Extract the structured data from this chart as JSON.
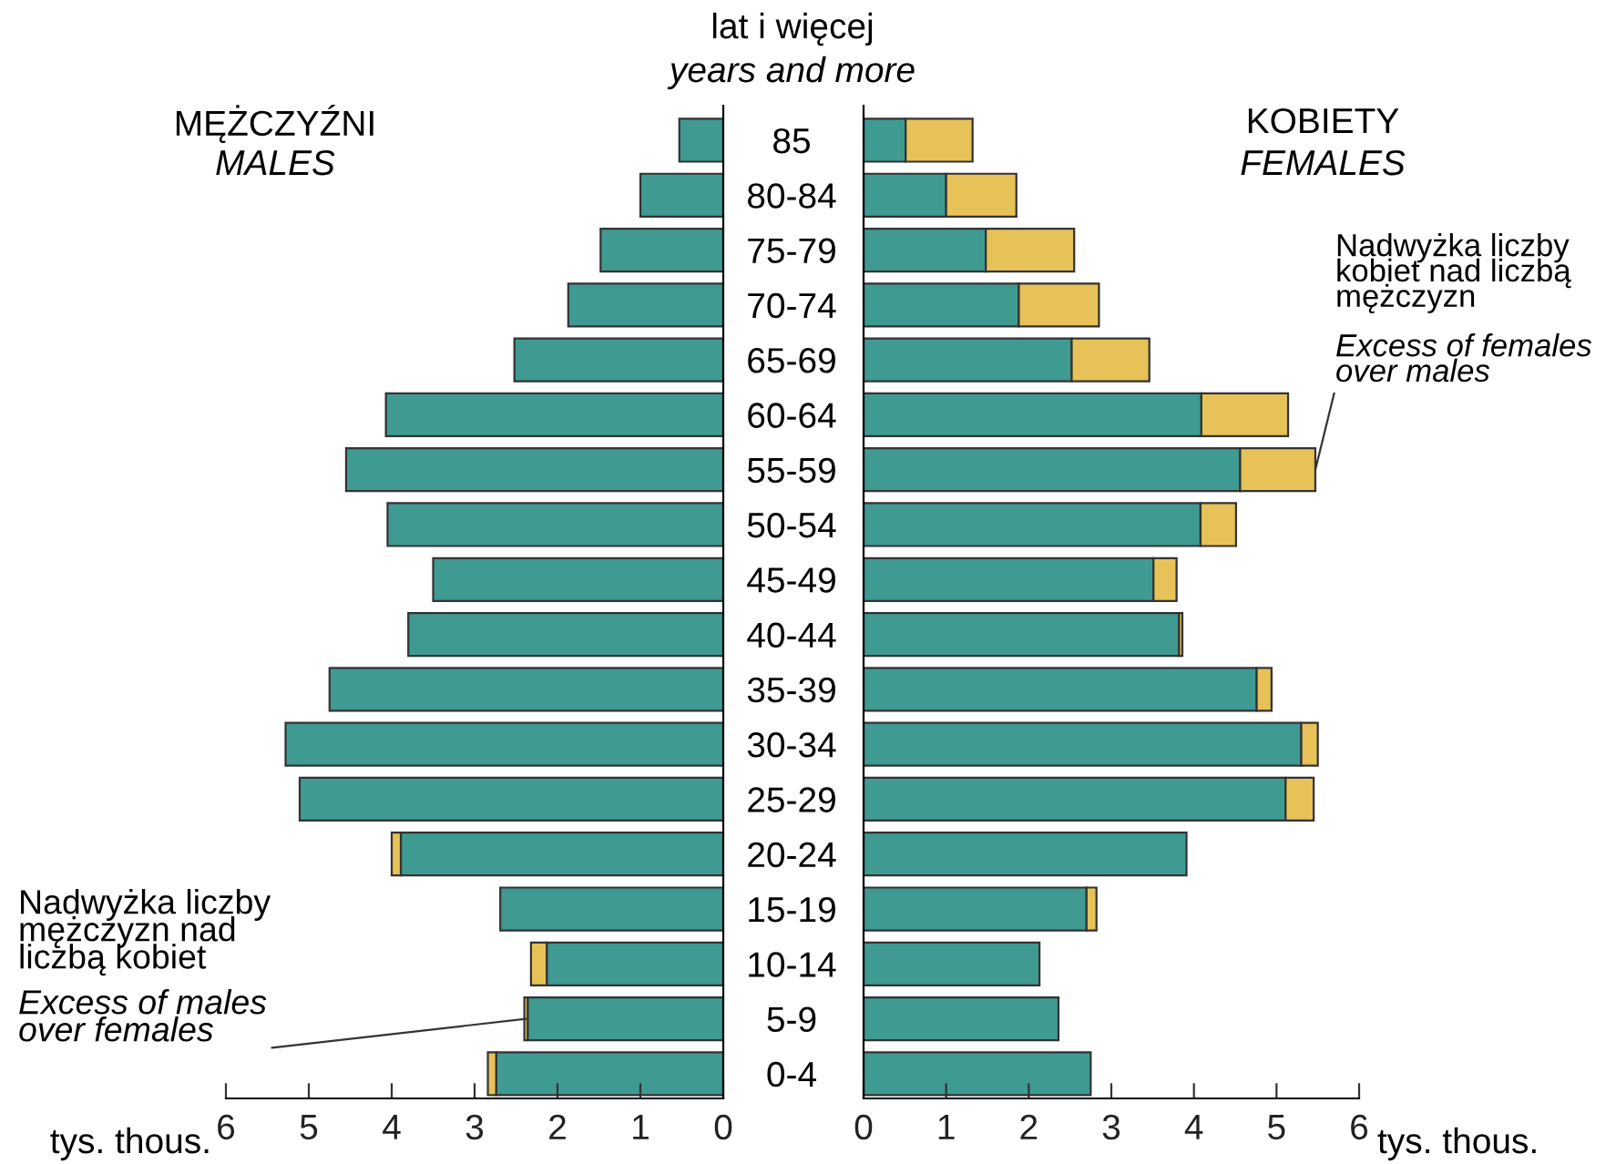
{
  "chart_data": [
    {
      "type": "bar",
      "orientation": "horizontal",
      "stacked": true,
      "title": "MĘŻCZYŹNI",
      "subtitle": "MALES",
      "xlabel": "tys. thous.",
      "categories": [
        "85",
        "80-84",
        "75-79",
        "70-74",
        "65-69",
        "60-64",
        "55-59",
        "50-54",
        "45-49",
        "40-44",
        "35-39",
        "30-34",
        "25-29",
        "20-24",
        "15-19",
        "10-14",
        "5-9",
        "0-4"
      ],
      "series": [
        {
          "color": "#3f9a92",
          "values": [
            0.53,
            1.0,
            1.48,
            1.87,
            2.52,
            4.07,
            4.55,
            4.05,
            3.5,
            3.8,
            4.75,
            5.28,
            5.11,
            3.89,
            2.69,
            2.13,
            2.36,
            2.74
          ]
        },
        {
          "color": "#e6c258",
          "values": [
            null,
            null,
            null,
            null,
            null,
            null,
            null,
            null,
            null,
            null,
            null,
            null,
            null,
            0.11,
            null,
            0.19,
            0.04,
            0.1
          ]
        }
      ],
      "xlim": [
        6,
        0
      ],
      "xticks": [
        0,
        1,
        2,
        3,
        4,
        5,
        6
      ],
      "annotations": [
        "lat i więcej",
        "years and more",
        "Nadwyżka liczby\nmężczyzn nad\nliczbą kobiet",
        {
          "text": "Excess of males\nover females",
          "x": 2.38,
          "y": "5-9"
        }
      ]
    },
    {
      "type": "bar",
      "orientation": "horizontal",
      "stacked": true,
      "title": "KOBIETY",
      "subtitle": "FEMALES",
      "xlabel": "tys. thous.",
      "tick_labels": "x",
      "categories": [
        "85",
        "80-84",
        "75-79",
        "70-74",
        "65-69",
        "60-64",
        "55-59",
        "50-54",
        "45-49",
        "40-44",
        "35-39",
        "30-34",
        "25-29",
        "20-24",
        "15-19",
        "10-14",
        "5-9",
        "0-4"
      ],
      "series": [
        {
          "color": "#3f9a92",
          "values": [
            0.51,
            1.0,
            1.48,
            1.88,
            2.52,
            4.09,
            4.56,
            4.08,
            3.51,
            3.82,
            4.76,
            5.3,
            5.11,
            3.91,
            2.7,
            2.13,
            2.36,
            2.75
          ]
        },
        {
          "color": "#e6c258",
          "values": [
            0.81,
            0.85,
            1.07,
            0.97,
            0.94,
            1.05,
            0.91,
            0.43,
            0.28,
            0.04,
            0.18,
            0.2,
            0.34,
            null,
            0.12,
            null,
            null,
            null
          ]
        }
      ],
      "xlim": [
        0,
        6
      ],
      "xticks": [
        0,
        1,
        2,
        3,
        4,
        5,
        6
      ],
      "annotations": [
        "Nadwyżka liczby\nkobiet nad liczbą\nmężczyzn",
        {
          "text": "Excess of females\nover males",
          "x": 5.47,
          "y": "55-59"
        }
      ]
    }
  ]
}
